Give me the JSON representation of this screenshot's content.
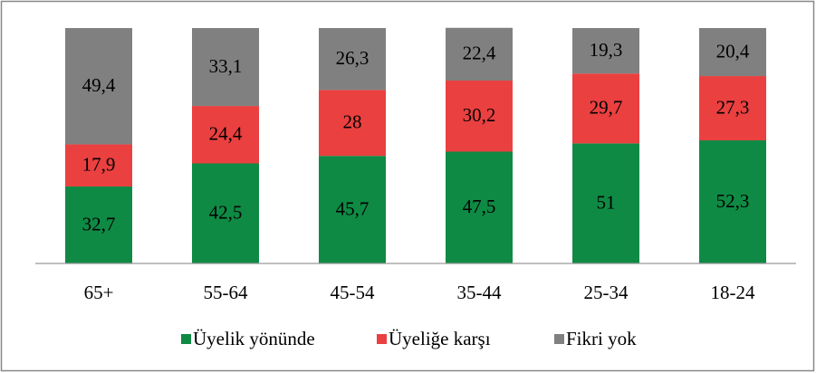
{
  "chart_data": {
    "type": "stacked_bar",
    "categories": [
      "65+",
      "55-64",
      "45-54",
      "35-44",
      "25-34",
      "18-24"
    ],
    "series": [
      {
        "name": "Üyelik yönünde",
        "color": "#0f8a44",
        "values": [
          32.7,
          42.5,
          45.7,
          47.5,
          51,
          52.3
        ],
        "value_labels": [
          "32,7",
          "42,5",
          "45,7",
          "47,5",
          "51",
          "52,3"
        ]
      },
      {
        "name": "Üyeliğe karşı",
        "color": "#ea4040",
        "values": [
          17.9,
          24.4,
          28,
          30.2,
          29.7,
          27.3
        ],
        "value_labels": [
          "17,9",
          "24,4",
          "28",
          "30,2",
          "29,7",
          "27,3"
        ]
      },
      {
        "name": "Fikri yok",
        "color": "#808080",
        "values": [
          49.4,
          33.1,
          26.3,
          22.4,
          19.3,
          20.4
        ],
        "value_labels": [
          "49,4",
          "33,1",
          "26,3",
          "22,4",
          "19,3",
          "20,4"
        ]
      }
    ],
    "ylim": [
      0,
      100
    ],
    "legend": "bottom"
  }
}
